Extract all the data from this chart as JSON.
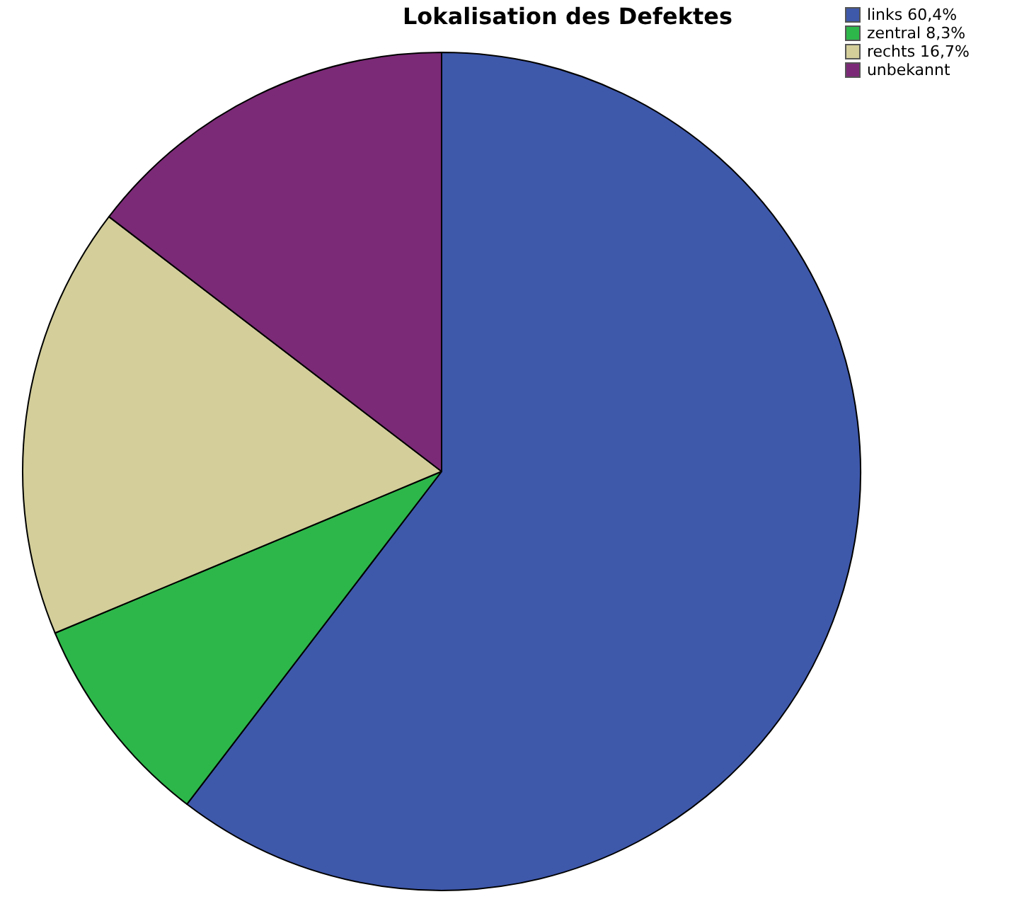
{
  "chart_data": {
    "type": "pie",
    "title": "Lokalisation des Defektes",
    "categories": [
      "links 60,4%",
      "zentral 8,3%",
      "rechts 16,7%",
      "unbekannt"
    ],
    "values": [
      60.4,
      8.3,
      16.7,
      14.6
    ],
    "colors": [
      "#3e58aa",
      "#2db74a",
      "#d3ce9a",
      "#7b2a77"
    ],
    "legend": "top right"
  }
}
